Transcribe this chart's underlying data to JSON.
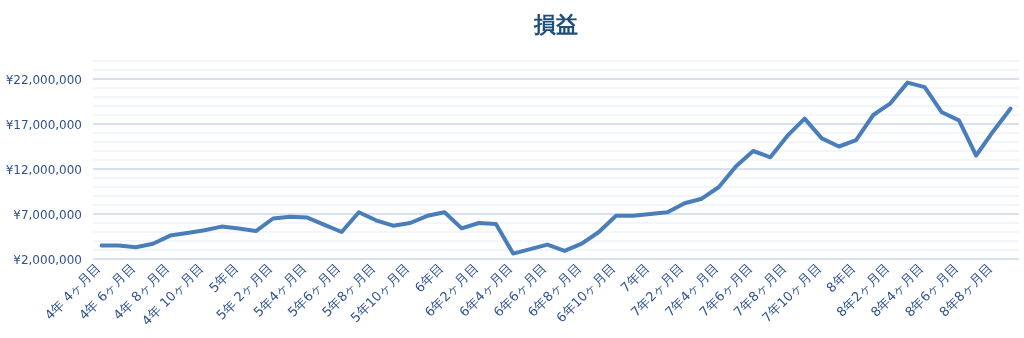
{
  "chart_data": {
    "type": "line",
    "title": "損益",
    "categories": [
      "4年 4ヶ月目",
      null,
      "4年 6ヶ月目",
      null,
      "4年 8ヶ月目",
      null,
      "4年 10ヶ月目",
      null,
      "5年目",
      null,
      "5年 2ヶ月目",
      null,
      "5年4ヶ月目",
      null,
      "5年6ヶ月目",
      null,
      "5年8ヶ月目",
      null,
      "5年10ヶ月目",
      null,
      "6年目",
      null,
      "6年2ヶ月目",
      null,
      "6年4ヶ月目",
      null,
      "6年6ヶ月目",
      null,
      "6年8ヶ月目",
      null,
      "6年10ヶ月目",
      null,
      "7年目",
      null,
      "7年2ヶ月目",
      null,
      "7年4ヶ月目",
      null,
      "7年6ヶ月目",
      null,
      "7年8ヶ月目",
      null,
      "7年10ヶ月目",
      null,
      "8年目",
      null,
      "8年2ヶ月目",
      null,
      "8年4ヶ月目",
      null,
      "8年6ヶ月目",
      null,
      "8年8ヶ月目",
      null
    ],
    "series": [
      {
        "color": "#4a7ebb",
        "values": [
          3500000,
          3500000,
          3300000,
          3700000,
          4600000,
          4900000,
          5200000,
          5600000,
          5400000,
          5100000,
          6500000,
          6700000,
          6600000,
          5800000,
          5000000,
          7200000,
          6300000,
          5700000,
          6000000,
          6800000,
          7200000,
          5400000,
          6000000,
          5900000,
          2600000,
          3100000,
          3600000,
          2900000,
          3700000,
          5000000,
          6800000,
          6800000,
          7000000,
          7200000,
          8200000,
          8700000,
          10000000,
          12300000,
          14000000,
          13300000,
          15700000,
          17600000,
          15400000,
          14500000,
          15200000,
          18000000,
          19300000,
          21600000,
          21100000,
          18300000,
          17400000,
          13500000,
          16200000,
          18700000
        ]
      }
    ],
    "ylim": [
      2000000,
      24000000
    ],
    "yticks": [
      {
        "value": 2000000,
        "label": "¥2,000,000"
      },
      {
        "value": 3000000,
        "label": null
      },
      {
        "value": 4000000,
        "label": null
      },
      {
        "value": 5000000,
        "label": null
      },
      {
        "value": 6000000,
        "label": null
      },
      {
        "value": 7000000,
        "label": "¥7,000,000"
      },
      {
        "value": 8000000,
        "label": null
      },
      {
        "value": 9000000,
        "label": null
      },
      {
        "value": 10000000,
        "label": null
      },
      {
        "value": 11000000,
        "label": null
      },
      {
        "value": 12000000,
        "label": "¥12,000,000"
      },
      {
        "value": 13000000,
        "label": null
      },
      {
        "value": 14000000,
        "label": null
      },
      {
        "value": 15000000,
        "label": null
      },
      {
        "value": 16000000,
        "label": null
      },
      {
        "value": 17000000,
        "label": "¥17,000,000"
      },
      {
        "value": 18000000,
        "label": null
      },
      {
        "value": 19000000,
        "label": null
      },
      {
        "value": 20000000,
        "label": null
      },
      {
        "value": 21000000,
        "label": null
      },
      {
        "value": 22000000,
        "label": "¥22,000,000"
      },
      {
        "value": 23000000,
        "label": null
      },
      {
        "value": 24000000,
        "label": null
      }
    ],
    "grid": "y",
    "marker": "none",
    "line_style": "solid"
  }
}
